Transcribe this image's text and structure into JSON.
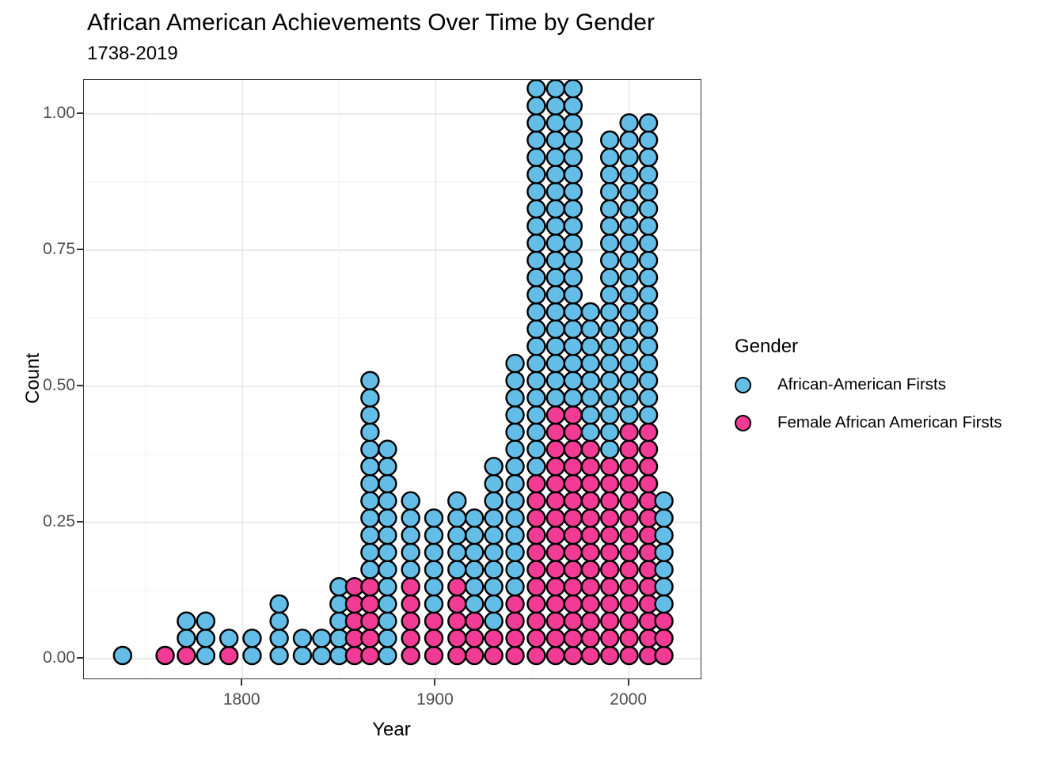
{
  "chart_data": {
    "type": "scatter",
    "variant": "stacked-dotplot",
    "title": "African American Achievements Over Time by Gender",
    "subtitle": "1738-2019",
    "xlabel": "Year",
    "ylabel": "Count",
    "xlim": [
      1718,
      2037
    ],
    "ylim": [
      -0.036,
      1.0625
    ],
    "grid": "on",
    "x_major_ticks": [
      1800,
      1900,
      2000
    ],
    "x_major_labels": [
      "1800",
      "1900",
      "2000"
    ],
    "x_minor_ticks": [
      1750,
      1850,
      1950
    ],
    "y_major_ticks": [
      0,
      0.25,
      0.5,
      0.75,
      1.0
    ],
    "y_major_labels": [
      "0.00",
      "0.25",
      "0.50",
      "0.75",
      "1.00"
    ],
    "y_minor_ticks": [
      0.125,
      0.375,
      0.625,
      0.875
    ],
    "dot_unit_count": 0.0315,
    "legend_position": "right",
    "legend": {
      "title": "Gender",
      "entries": [
        {
          "label": "African-American Firsts",
          "color": "#63BDE6"
        },
        {
          "label": "Female African American Firsts",
          "color": "#F23B94"
        }
      ]
    },
    "colors": {
      "male_firsts_blue": "#63BDE6",
      "female_firsts_pink": "#F23B94",
      "dot_outline": "#000000"
    },
    "columns_note": "Each column is a stack of dots at ~decade bins; pink dots (Female African American Firsts) are stacked at the bottom, blue above. Columns at 1952 and 1962 overflow the top of the panel (clipped).",
    "columns": [
      {
        "year": 1738,
        "pink": 0,
        "blue": 1
      },
      {
        "year": 1760,
        "pink": 1,
        "blue": 0
      },
      {
        "year": 1771,
        "pink": 1,
        "blue": 2
      },
      {
        "year": 1781,
        "pink": 0,
        "blue": 3
      },
      {
        "year": 1793,
        "pink": 1,
        "blue": 1
      },
      {
        "year": 1805,
        "pink": 0,
        "blue": 2
      },
      {
        "year": 1819,
        "pink": 0,
        "blue": 4
      },
      {
        "year": 1831,
        "pink": 0,
        "blue": 2
      },
      {
        "year": 1841,
        "pink": 0,
        "blue": 2
      },
      {
        "year": 1850,
        "pink": 0,
        "blue": 5
      },
      {
        "year": 1858,
        "pink": 5,
        "blue": 0
      },
      {
        "year": 1866,
        "pink": 5,
        "blue": 12
      },
      {
        "year": 1875,
        "pink": 0,
        "blue": 13
      },
      {
        "year": 1887,
        "pink": 5,
        "blue": 5
      },
      {
        "year": 1899,
        "pink": 3,
        "blue": 6
      },
      {
        "year": 1911,
        "pink": 5,
        "blue": 5
      },
      {
        "year": 1920,
        "pink": 3,
        "blue": 6
      },
      {
        "year": 1930,
        "pink": 2,
        "blue": 10
      },
      {
        "year": 1941,
        "pink": 4,
        "blue": 14
      },
      {
        "year": 1952,
        "pink": 11,
        "blue": 25,
        "clipped_at_top": true
      },
      {
        "year": 1962,
        "pink": 15,
        "blue": 21,
        "clipped_at_top": true
      },
      {
        "year": 1971,
        "pink": 15,
        "blue": 19
      },
      {
        "year": 1980,
        "pink": 13,
        "blue": 8
      },
      {
        "year": 1990,
        "pink": 12,
        "blue": 19
      },
      {
        "year": 2000,
        "pink": 14,
        "blue": 18
      },
      {
        "year": 2010,
        "pink": 14,
        "blue": 18
      },
      {
        "year": 2018,
        "pink": 3,
        "blue": 7
      }
    ]
  }
}
